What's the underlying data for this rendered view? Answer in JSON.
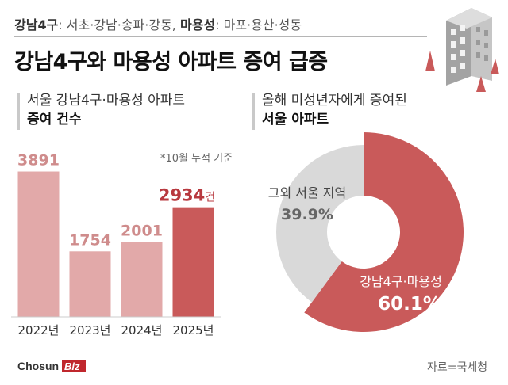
{
  "header": {
    "subtitle_gangnam": "강남4구",
    "subtitle_gangnam_list": ": 서초·강남·송파·강동, ",
    "subtitle_mayong": "마용성",
    "subtitle_mayong_list": ": 마포·용산·성동",
    "title": "강남4구와 마용성 아파트 증여 급증"
  },
  "left_section": {
    "line1": "서울 강남4구·마용성 아파트",
    "line2": "증여 건수",
    "note": "*10월 누적 기준"
  },
  "right_section": {
    "line1": "올해 미성년자에게 증여된",
    "line2": "서울 아파트"
  },
  "footer": {
    "logo_main": "Chosun",
    "logo_accent": "Biz",
    "source": "자료=국세청"
  },
  "colors": {
    "bar_light": "#e2a9a9",
    "bar_dark": "#c95a5a",
    "label_light": "#cf8c8c",
    "label_dark": "#b8393f",
    "donut_main": "#c95a5a",
    "donut_other": "#d9d9d9"
  },
  "chart_data": [
    {
      "type": "bar",
      "title": "서울 강남4구·마용성 아파트 증여 건수",
      "categories": [
        "2022년",
        "2023년",
        "2024년",
        "2025년"
      ],
      "values": [
        3891,
        1754,
        2001,
        2934
      ],
      "labels": [
        "3891",
        "1754",
        "2001",
        "2934"
      ],
      "unit": "건",
      "highlight_index": 3,
      "ylim": [
        0,
        4000
      ],
      "grid": false
    },
    {
      "type": "pie",
      "title": "올해 미성년자에게 증여된 서울 아파트",
      "donut": true,
      "slices": [
        {
          "label": "강남4구·마용성",
          "value": 60.1,
          "value_label": "60.1%"
        },
        {
          "label": "그외 서울 지역",
          "value": 39.9,
          "value_label": "39.9%"
        }
      ]
    }
  ]
}
